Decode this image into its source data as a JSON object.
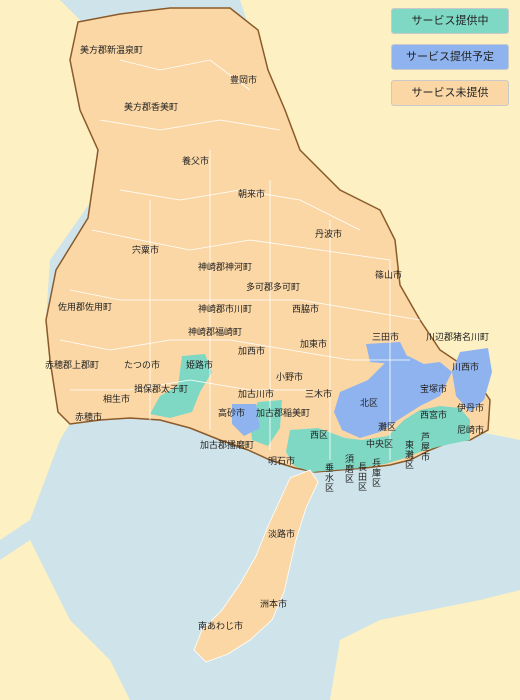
{
  "colors": {
    "sea": "#cfe3ea",
    "outside": "#fdf0c2",
    "unprovided": "#fbd7a5",
    "provided": "#7fd8c4",
    "planned": "#8fb3ef",
    "border": "#ffffff",
    "prefecture_border": "#8a5a2a"
  },
  "legend": {
    "provided": "サービス提供中",
    "planned": "サービス提供予定",
    "unprovided": "サービス未提供"
  },
  "regions": {
    "mikata_onsen": "美方郡新温泉町",
    "toyooka": "豊岡市",
    "mikata_kami": "美方郡香美町",
    "yabu": "養父市",
    "asago": "朝来市",
    "tamba": "丹波市",
    "shiso": "宍粟市",
    "kamikawa": "神崎郡神河町",
    "taka": "多可郡多可町",
    "sasayama": "篠山市",
    "sayo": "佐用郡佐用町",
    "ichikawa": "神崎郡市川町",
    "nishiwaki": "西脇市",
    "sanda": "三田市",
    "inagawa": "川辺郡猪名川町",
    "fukusaki": "神崎郡福崎町",
    "kato": "加東市",
    "kamigori": "赤穂郡上郡町",
    "tatsuno": "たつの市",
    "himeji": "姫路市",
    "kasai": "加西市",
    "kawanishi": "川西市",
    "ono": "小野市",
    "aioi": "相生市",
    "taishi": "揖保郡太子町",
    "kakogawa": "加古川市",
    "miki": "三木市",
    "takarazuka": "宝塚市",
    "kita": "北区",
    "nishinomiya": "西宮市",
    "itami": "伊丹市",
    "ako": "赤穂市",
    "takasago": "高砂市",
    "inami": "加古郡稲美町",
    "nada": "灘区",
    "amagasaki": "尼崎市",
    "ashiya": "芦屋市",
    "nishi": "西区",
    "chuo": "中央区",
    "higashinada": "東灘区",
    "harima": "加古郡播磨町",
    "akashi": "明石市",
    "tarumi": "垂水区",
    "suma": "須磨区",
    "nagata": "長田区",
    "hyogo": "兵庫区",
    "awaji": "淡路市",
    "sumoto": "洲本市",
    "minamiawaji": "南あわじ市"
  }
}
